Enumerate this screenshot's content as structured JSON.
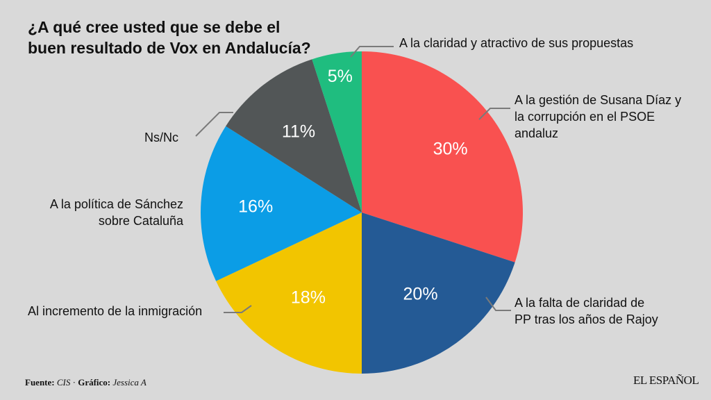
{
  "chart_data": {
    "type": "pie",
    "title": "¿A qué cree usted que se debe el buen resultado de Vox en Andalucía?",
    "start": "top",
    "direction": "clockwise",
    "slices": [
      {
        "label": "A la gestión de Susana Díaz y la corrupción en el PSOE andaluz",
        "value": 30,
        "display": "30%",
        "color": "#f95150"
      },
      {
        "label": "A la falta de claridad de PP tras los años de Rajoy",
        "value": 20,
        "display": "20%",
        "color": "#245a95"
      },
      {
        "label": "Al incremento de la inmigración",
        "value": 18,
        "display": "18%",
        "color": "#f2c500"
      },
      {
        "label": "A la política de Sánchez sobre Cataluña",
        "value": 16,
        "display": "16%",
        "color": "#0b9de6"
      },
      {
        "label": "Ns/Nc",
        "value": 11,
        "display": "11%",
        "color": "#525657"
      },
      {
        "label": "A la claridad y atractivo de sus propuestas",
        "value": 5,
        "display": "5%",
        "color": "#1fbd7f"
      }
    ]
  },
  "footer": {
    "source_label": "Fuente:",
    "source": "CIS",
    "separator": " · ",
    "graphic_label": "Gráfico:",
    "author": "Jessica A",
    "logo": "EL ESPAÑOL"
  }
}
